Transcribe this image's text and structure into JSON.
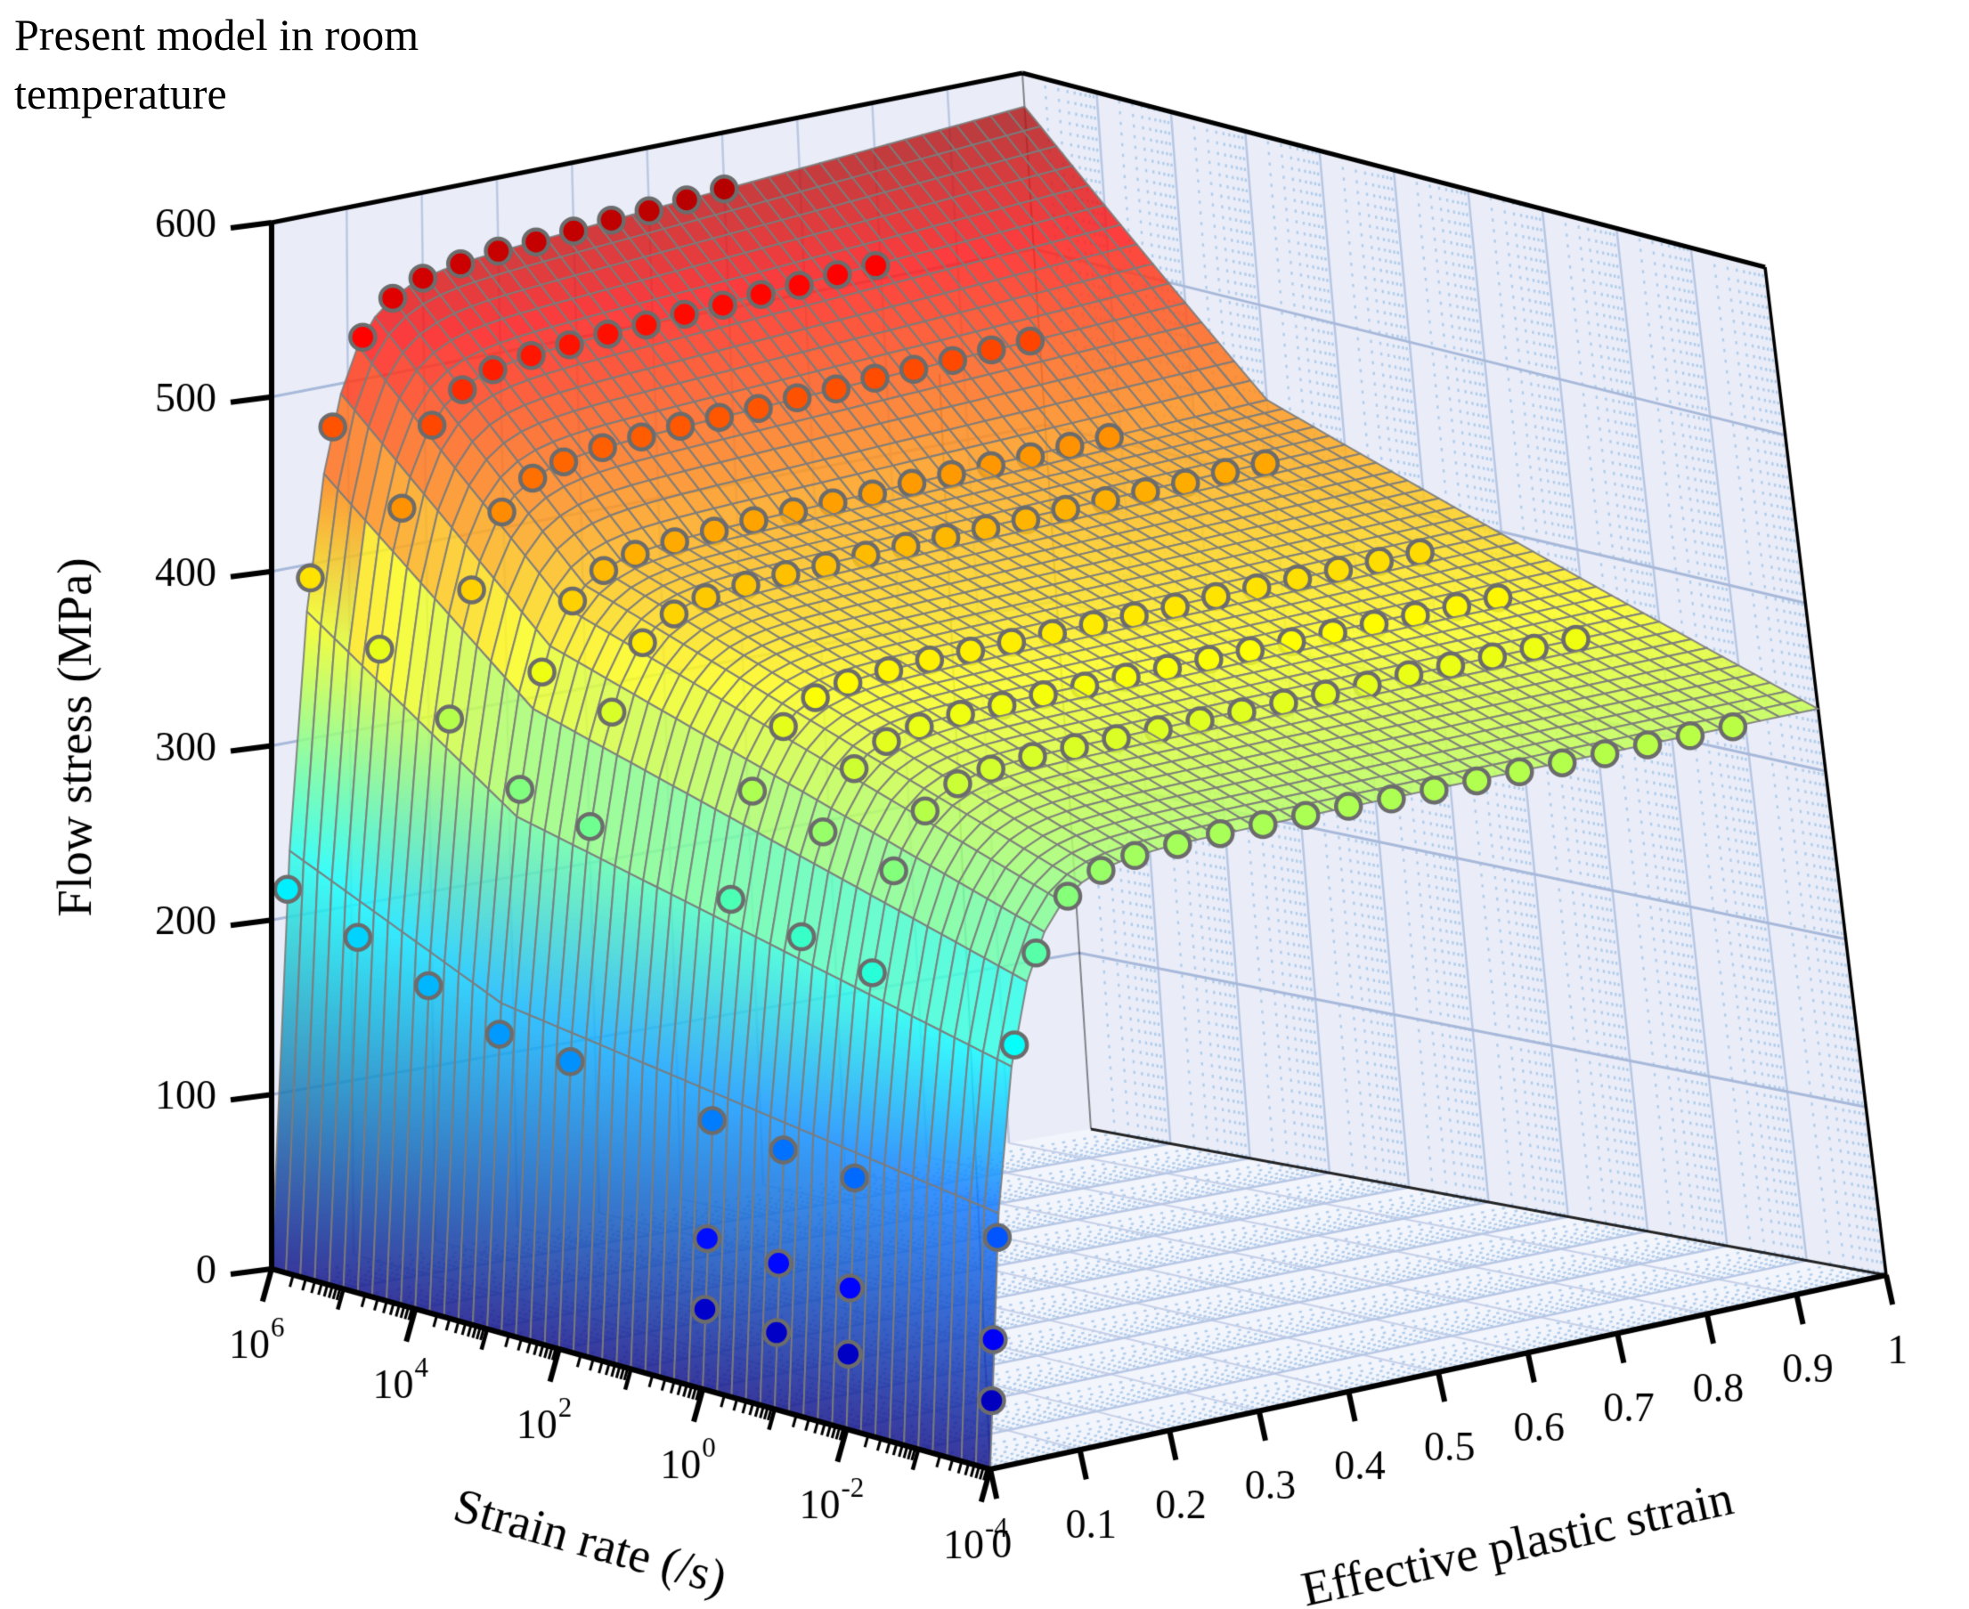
{
  "chart_data": {
    "type": "surface3d",
    "title": "Present model in room temperature",
    "title_lines": [
      "Present model in room",
      "temperature"
    ],
    "colormap": "jet",
    "axes": {
      "x": {
        "label": "Strain rate (/s)",
        "scale": "log10",
        "min_exponent": -4,
        "max_exponent": 6,
        "tick_exponents": [
          6,
          4,
          2,
          0,
          -2,
          -4
        ]
      },
      "y": {
        "label": "Effective plastic strain",
        "range": [
          0,
          1
        ],
        "ticks": [
          0,
          0.1,
          0.2,
          0.3,
          0.4,
          0.5,
          0.6,
          0.7,
          0.8,
          0.9,
          1
        ],
        "tick_labels": [
          "0",
          "0.1",
          "0.2",
          "0.3",
          "0.4",
          "0.5",
          "0.6",
          "0.7",
          "0.8",
          "0.9",
          "1"
        ]
      },
      "z": {
        "label": "Flow stress (MPa)",
        "range": [
          0,
          600
        ],
        "ticks": [
          0,
          100,
          200,
          300,
          400,
          500,
          600
        ],
        "tick_labels": [
          "0",
          "100",
          "200",
          "300",
          "400",
          "500",
          "600"
        ]
      }
    },
    "surface_model": {
      "description": "flow stress (MPa) = R(log10 strain rate) x H(plastic strain); R piecewise-linear, H = (1-exp(-eps/eps0))*(1+h1*eps)",
      "R_anchors_log10rate_MPa": [
        [
          -4,
          318
        ],
        [
          3,
          420
        ],
        [
          6,
          548
        ]
      ],
      "hardening": {
        "eps0": 0.04,
        "h1": 0.06
      },
      "grid": {
        "nu": 50,
        "nv": 44
      }
    },
    "series": [
      {
        "rate_label": "1e6",
        "log10_rate": 6,
        "strains": [
          0.02,
          0.05,
          0.08,
          0.12,
          0.16,
          0.2,
          0.25,
          0.3,
          0.35,
          0.4,
          0.45,
          0.5,
          0.55,
          0.6
        ],
        "stresses": [
          216,
          392,
          476,
          524,
          543,
          551,
          555,
          558,
          559,
          561,
          563,
          564,
          566,
          568
        ]
      },
      {
        "rate_label": "1e5",
        "log10_rate": 5,
        "strains": [
          0.02,
          0.05,
          0.08,
          0.12,
          0.16,
          0.2,
          0.25,
          0.3,
          0.35,
          0.4,
          0.45,
          0.5,
          0.55,
          0.6,
          0.65,
          0.7
        ],
        "stresses": [
          199,
          361,
          439,
          483,
          500,
          508,
          512,
          514,
          516,
          517,
          519,
          520,
          522,
          523,
          525,
          526
        ]
      },
      {
        "rate_label": "1e4",
        "log10_rate": 4,
        "strains": [
          0.02,
          0.05,
          0.08,
          0.12,
          0.16,
          0.2,
          0.25,
          0.3,
          0.35,
          0.4,
          0.45,
          0.5,
          0.55,
          0.6,
          0.65,
          0.7,
          0.75,
          0.8
        ],
        "stresses": [
          182,
          331,
          402,
          443,
          459,
          465,
          469,
          471,
          473,
          474,
          475,
          477,
          478,
          480,
          481,
          482,
          484,
          485
        ]
      },
      {
        "rate_label": "1e3",
        "log10_rate": 3,
        "strains": [
          0.02,
          0.05,
          0.08,
          0.12,
          0.16,
          0.2,
          0.25,
          0.3,
          0.35,
          0.4,
          0.45,
          0.5,
          0.55,
          0.6,
          0.65,
          0.7,
          0.75,
          0.8
        ],
        "stresses": [
          165,
          301,
          365,
          402,
          416,
          422,
          425,
          427,
          429,
          430,
          431,
          432,
          434,
          435,
          436,
          437,
          439,
          440
        ]
      },
      {
        "rate_label": "1e2",
        "log10_rate": 2,
        "strains": [
          0.02,
          0.05,
          0.08,
          0.12,
          0.16,
          0.2,
          0.25,
          0.3,
          0.35,
          0.4,
          0.45,
          0.5,
          0.55,
          0.6,
          0.65,
          0.7,
          0.75,
          0.8,
          0.85,
          0.9
        ],
        "stresses": [
          160,
          290,
          352,
          388,
          401,
          407,
          410,
          412,
          413,
          415,
          416,
          417,
          418,
          419,
          421,
          422,
          423,
          424,
          426,
          427
        ]
      },
      {
        "rate_label": "1e0",
        "log10_rate": 0,
        "strains": [
          0.005,
          0.01,
          0.02,
          0.05,
          0.08,
          0.12,
          0.16,
          0.2,
          0.25,
          0.3,
          0.35,
          0.4,
          0.45,
          0.5,
          0.55,
          0.6,
          0.65,
          0.7,
          0.75,
          0.8,
          0.85,
          0.9
        ],
        "stresses": [
          44,
          83,
          148,
          269,
          327,
          360,
          373,
          378,
          381,
          383,
          384,
          385,
          386,
          387,
          388,
          389,
          391,
          392,
          393,
          394,
          395,
          396
        ]
      },
      {
        "rate_label": "1e-1",
        "log10_rate": -1,
        "strains": [
          0.005,
          0.01,
          0.02,
          0.05,
          0.08,
          0.12,
          0.16,
          0.2,
          0.25,
          0.3,
          0.35,
          0.4,
          0.45,
          0.5,
          0.55,
          0.6,
          0.65,
          0.7,
          0.75,
          0.8,
          0.85,
          0.9
        ],
        "stresses": [
          42,
          80,
          142,
          258,
          314,
          346,
          358,
          363,
          366,
          367,
          369,
          370,
          371,
          372,
          373,
          374,
          375,
          376,
          377,
          378,
          379,
          380
        ]
      },
      {
        "rate_label": "1e-2",
        "log10_rate": -2,
        "strains": [
          0.005,
          0.01,
          0.02,
          0.05,
          0.08,
          0.12,
          0.16,
          0.2,
          0.25,
          0.3,
          0.35,
          0.4,
          0.45,
          0.5,
          0.55,
          0.6,
          0.65,
          0.7,
          0.75,
          0.8,
          0.85,
          0.9
        ],
        "stresses": [
          41,
          77,
          137,
          248,
          302,
          332,
          344,
          349,
          352,
          353,
          354,
          355,
          356,
          357,
          358,
          359,
          360,
          362,
          363,
          364,
          365,
          366
        ]
      },
      {
        "rate_label": "1e-4",
        "log10_rate": -4,
        "strains": [
          0.005,
          0.01,
          0.02,
          0.05,
          0.08,
          0.12,
          0.16,
          0.2,
          0.25,
          0.3,
          0.35,
          0.4,
          0.45,
          0.5,
          0.55,
          0.6,
          0.65,
          0.7,
          0.75,
          0.8,
          0.85,
          0.9
        ],
        "stresses": [
          37,
          70,
          125,
          228,
          276,
          304,
          315,
          320,
          322,
          324,
          325,
          326,
          327,
          327,
          328,
          329,
          330,
          331,
          332,
          333,
          334,
          335
        ]
      }
    ],
    "colors": {
      "background": "#ffffff",
      "wall_fill": "#eaedf8",
      "floor_fill": "#f3f5fc",
      "wall_grid": "#a8b9da",
      "wall_grid_light": "#bcc8e3",
      "decade_grid": "#b8c7e4",
      "floor_strain_grid": "#c6d0e8",
      "minor_dots": "#b0cdec",
      "surface_mesh": "#7d7d7d",
      "point_edge": "#6c6c6c",
      "axis": "#000000",
      "text": "#000000"
    }
  }
}
